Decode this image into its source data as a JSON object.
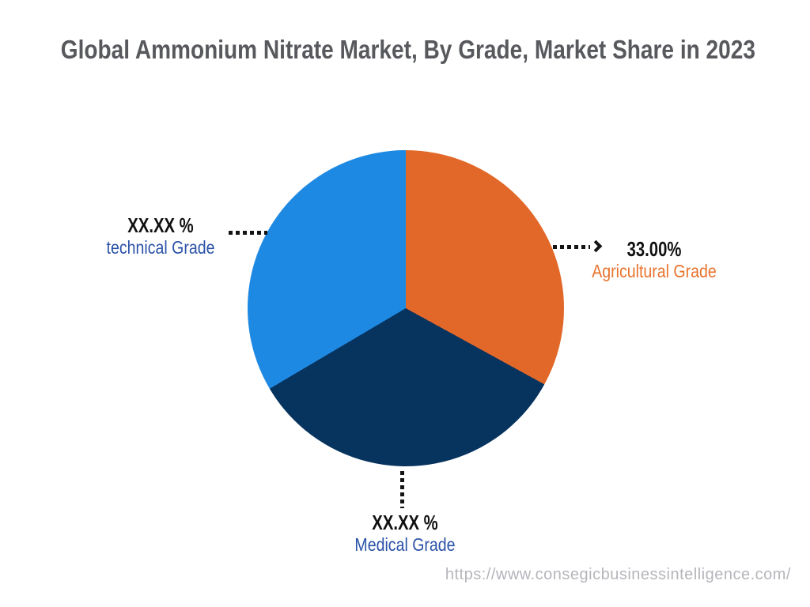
{
  "title": "Global Ammonium Nitrate Market, By Grade, Market Share in 2023",
  "watermark": "https://www.consegicbusinessintelligence.com/",
  "colors": {
    "background": "#ffffff",
    "title_text": "#57595d",
    "value_text": "#111111",
    "connector": "#141414",
    "watermark_text": "#b5b5bb"
  },
  "chart_data": {
    "type": "pie",
    "title": "Global Ammonium Nitrate Market, By Grade, Market Share in 2023",
    "unit": "%",
    "direction": "clockwise",
    "start_angle_deg": 0,
    "legend_position": "none",
    "slices": [
      {
        "name": "Agricultural Grade",
        "value": 33.0,
        "value_label": "33.00%",
        "color": "#e26829",
        "text_color": "#e8732d",
        "callout_side": "right"
      },
      {
        "name": "Medical Grade",
        "value": 33.5,
        "value_label": "XX.XX %",
        "color": "#07335f",
        "text_color": "#2b52a8",
        "callout_side": "bottom"
      },
      {
        "name": "technical Grade",
        "value": 33.5,
        "value_label": "XX.XX %",
        "color": "#1e89e2",
        "text_color": "#2b52a8",
        "callout_side": "left"
      }
    ]
  }
}
